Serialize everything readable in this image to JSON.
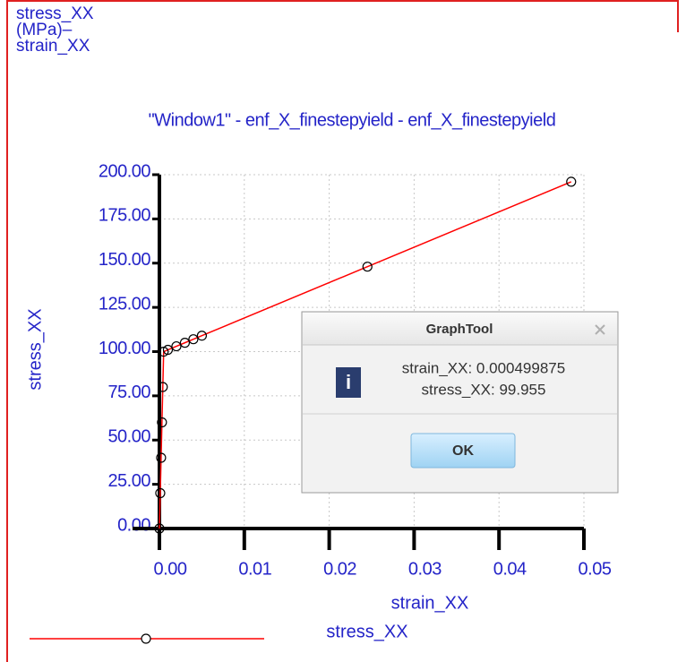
{
  "chart_data": {
    "type": "line",
    "header_lines": [
      "stress_XX",
      "(MPa)–",
      "strain_XX"
    ],
    "title": "\"Window1\" - enf_X_finestepyield - enf_X_finestepyield",
    "xlabel": "strain_XX",
    "ylabel": "stress_XX",
    "xlim": [
      0,
      0.05
    ],
    "ylim": [
      0,
      200
    ],
    "xticks": [
      {
        "value": 0,
        "label": "0.00"
      },
      {
        "value": 0.01,
        "label": "0.01"
      },
      {
        "value": 0.02,
        "label": "0.02"
      },
      {
        "value": 0.03,
        "label": "0.03"
      },
      {
        "value": 0.04,
        "label": "0.04"
      },
      {
        "value": 0.05,
        "label": "0.05"
      }
    ],
    "yticks": [
      {
        "value": 0,
        "label": "0.00"
      },
      {
        "value": 25,
        "label": "25.00"
      },
      {
        "value": 50,
        "label": "50.00"
      },
      {
        "value": 75,
        "label": "75.00"
      },
      {
        "value": 100,
        "label": "100.00"
      },
      {
        "value": 125,
        "label": "125.00"
      },
      {
        "value": 150,
        "label": "150.00"
      },
      {
        "value": 175,
        "label": "175.00"
      },
      {
        "value": 200,
        "label": "200.00"
      }
    ],
    "grid": true,
    "series": [
      {
        "name": "stress_XX",
        "color": "#ff0000",
        "x": [
          0,
          0.0001,
          0.0002,
          0.0003,
          0.0004,
          0.000499875,
          0.001,
          0.002,
          0.003,
          0.004,
          0.005,
          0.0245,
          0.0485
        ],
        "values": [
          0,
          20,
          40,
          60,
          80,
          99.955,
          101,
          103,
          105,
          107,
          109,
          148,
          196
        ]
      }
    ]
  },
  "dialog": {
    "title": "GraphTool",
    "icon": "i",
    "lines": [
      "strain_XX: 0.000499875",
      "stress_XX: 99.955"
    ],
    "button": "OK"
  }
}
